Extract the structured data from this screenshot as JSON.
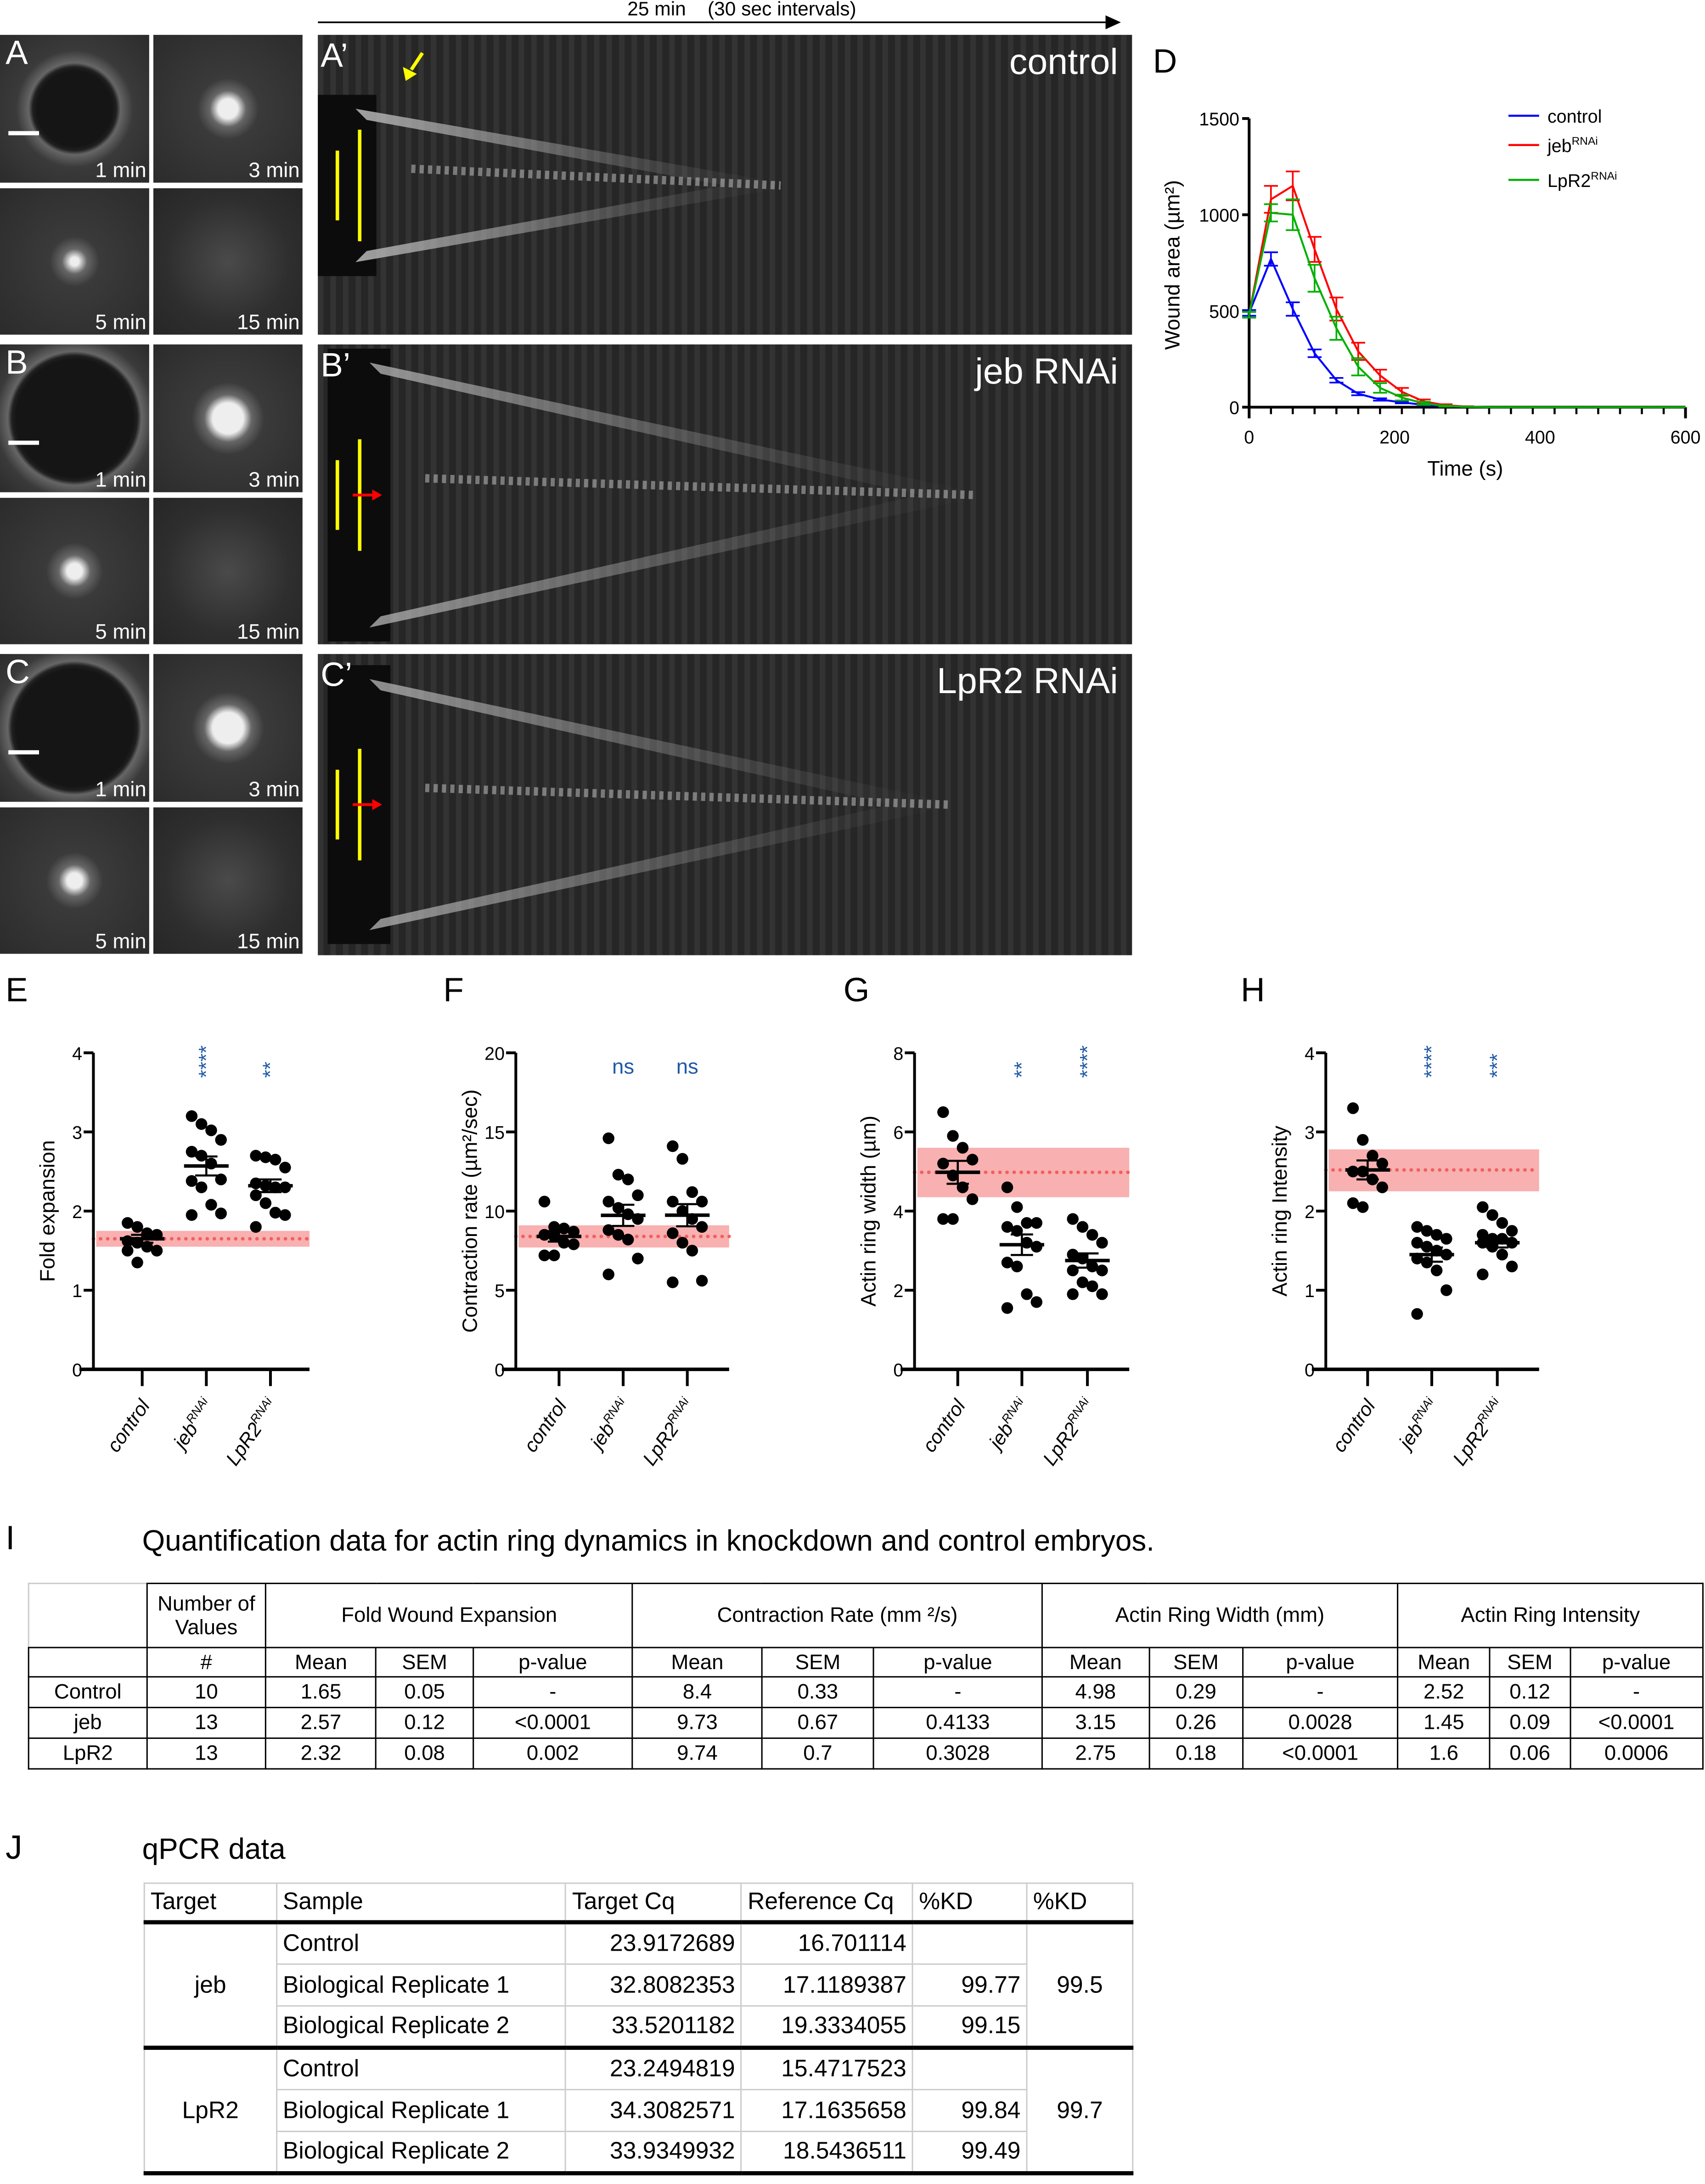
{
  "header": {
    "time_label": "25 min    (30 sec intervals)"
  },
  "microscopy": [
    {
      "letter": "A",
      "kymo_letter": "A’",
      "condition": "control",
      "times": [
        "1 min",
        "3 min",
        "5 min",
        "15 min"
      ]
    },
    {
      "letter": "B",
      "kymo_letter": "B’",
      "condition": "jeb RNAi",
      "times": [
        "1 min",
        "3 min",
        "5 min",
        "15 min"
      ]
    },
    {
      "letter": "C",
      "kymo_letter": "C’",
      "condition": "LpR2 RNAi",
      "times": [
        "1 min",
        "3 min",
        "5 min",
        "15 min"
      ]
    }
  ],
  "colors": {
    "control": "#0000ff",
    "jeb": "#ff0000",
    "lpr2": "#00b000",
    "significance": "#1f5aa6",
    "band": "#f8b0b0",
    "band_line": "#f06060",
    "arrow_yellow": "#ffff00",
    "arrow_red": "#ff0000"
  },
  "chart_data": [
    {
      "panel": "D",
      "type": "line",
      "xlabel": "Time (s)",
      "ylabel": "Wound area (µm²)",
      "xlim": [
        0,
        600
      ],
      "ylim": [
        0,
        1500
      ],
      "xticks": [
        "0",
        "200",
        "400",
        "600"
      ],
      "yticks": [
        "0",
        "500",
        "1000",
        "1500"
      ],
      "legend": "top-right",
      "x": [
        0,
        30,
        60,
        90,
        120,
        150,
        180,
        210,
        240,
        270,
        300,
        330,
        360,
        390,
        420,
        450,
        480,
        510,
        540,
        570,
        600
      ],
      "series": [
        {
          "name": "control",
          "color": "#0000ff",
          "values": [
            490,
            770,
            510,
            280,
            140,
            70,
            40,
            25,
            12,
            5,
            2,
            0,
            0,
            0,
            0,
            0,
            0,
            0,
            0,
            0,
            0
          ],
          "sem": [
            15,
            35,
            35,
            20,
            12,
            8,
            6,
            5,
            3,
            2,
            1,
            0,
            0,
            0,
            0,
            0,
            0,
            0,
            0,
            0,
            0
          ]
        },
        {
          "name": "jebRNAi",
          "color": "#ff0000",
          "values": [
            480,
            1080,
            1150,
            820,
            510,
            290,
            165,
            80,
            30,
            10,
            3,
            0,
            0,
            0,
            0,
            0,
            0,
            0,
            0,
            0,
            0
          ],
          "sem": [
            15,
            70,
            75,
            65,
            60,
            45,
            30,
            20,
            10,
            5,
            2,
            0,
            0,
            0,
            0,
            0,
            0,
            0,
            0,
            0,
            0
          ]
        },
        {
          "name": "LpR2RNAi",
          "color": "#00b000",
          "values": [
            480,
            1010,
            1000,
            670,
            410,
            210,
            100,
            50,
            20,
            6,
            2,
            0,
            0,
            0,
            0,
            0,
            0,
            0,
            0,
            0,
            0
          ],
          "sem": [
            15,
            45,
            80,
            70,
            60,
            45,
            25,
            15,
            8,
            3,
            1,
            0,
            0,
            0,
            0,
            0,
            0,
            0,
            0,
            0,
            0
          ]
        }
      ]
    },
    {
      "panel": "E",
      "type": "scatter",
      "ylabel": "Fold expansion",
      "ylim": [
        0,
        4
      ],
      "yticks": [
        "0",
        "1",
        "2",
        "3",
        "4"
      ],
      "categories": [
        "control",
        "jebRNAi",
        "LpR2RNAi"
      ],
      "significance": [
        "",
        "****",
        "**"
      ],
      "reference_band": [
        1.55,
        1.75
      ],
      "reference_line": 1.65,
      "groups": [
        {
          "values": [
            1.85,
            1.8,
            1.72,
            1.7,
            1.62,
            1.6,
            1.55,
            1.5,
            1.5,
            1.35
          ],
          "mean": 1.65,
          "sem": 0.05
        },
        {
          "values": [
            3.2,
            3.1,
            3.02,
            2.9,
            2.75,
            2.7,
            2.6,
            2.4,
            2.38,
            2.3,
            2.08,
            1.95,
            1.97
          ],
          "mean": 2.57,
          "sem": 0.12
        },
        {
          "values": [
            2.7,
            2.68,
            2.65,
            2.55,
            2.35,
            2.32,
            2.3,
            2.3,
            2.2,
            2.1,
            1.98,
            1.95,
            1.8
          ],
          "mean": 2.32,
          "sem": 0.08
        }
      ]
    },
    {
      "panel": "F",
      "type": "scatter",
      "ylabel": "Contraction rate (µm²/sec)",
      "ylim": [
        0,
        20
      ],
      "yticks": [
        "0",
        "5",
        "10",
        "15",
        "20"
      ],
      "categories": [
        "control",
        "jebRNAi",
        "LpR2RNAi"
      ],
      "significance": [
        "",
        "ns",
        "ns"
      ],
      "reference_band": [
        7.7,
        9.1
      ],
      "reference_line": 8.4,
      "groups": [
        {
          "values": [
            10.6,
            9.0,
            8.9,
            8.7,
            8.5,
            8.4,
            8.0,
            7.9,
            7.2,
            7.2
          ],
          "mean": 8.4,
          "sem": 0.33
        },
        {
          "values": [
            14.6,
            12.3,
            12.0,
            11.0,
            10.6,
            10.2,
            9.8,
            9.5,
            8.8,
            8.5,
            7.0,
            6.0,
            8.2
          ],
          "mean": 9.73,
          "sem": 0.67
        },
        {
          "values": [
            14.1,
            13.3,
            11.2,
            10.6,
            10.6,
            10.0,
            9.5,
            9.0,
            8.6,
            8.0,
            7.5,
            5.6,
            5.5
          ],
          "mean": 9.74,
          "sem": 0.7
        }
      ]
    },
    {
      "panel": "G",
      "type": "scatter",
      "ylabel": "Actin ring width (µm)",
      "ylim": [
        0,
        8
      ],
      "yticks": [
        "0",
        "2",
        "4",
        "6",
        "8"
      ],
      "categories": [
        "control",
        "jebRNAi",
        "LpR2RNAi"
      ],
      "significance": [
        "",
        "**",
        "****"
      ],
      "reference_band": [
        4.35,
        5.6
      ],
      "reference_line": 4.98,
      "groups": [
        {
          "values": [
            6.5,
            5.9,
            5.6,
            5.3,
            5.2,
            4.9,
            4.6,
            4.3,
            3.8,
            3.8
          ],
          "mean": 4.98,
          "sem": 0.29
        },
        {
          "values": [
            4.6,
            4.1,
            3.7,
            3.7,
            3.6,
            3.5,
            3.2,
            3.1,
            2.7,
            2.6,
            1.9,
            1.7,
            1.55
          ],
          "mean": 3.15,
          "sem": 0.26
        },
        {
          "values": [
            3.8,
            3.6,
            3.4,
            3.2,
            2.9,
            2.8,
            2.6,
            2.5,
            2.5,
            2.2,
            2.1,
            1.9,
            1.9
          ],
          "mean": 2.75,
          "sem": 0.18
        }
      ]
    },
    {
      "panel": "H",
      "type": "scatter",
      "ylabel": "Actin ring Intensity",
      "ylim": [
        0,
        4
      ],
      "yticks": [
        "0",
        "1",
        "2",
        "3",
        "4"
      ],
      "categories": [
        "control",
        "jebRNAi",
        "LpR2RNAi"
      ],
      "significance": [
        "",
        "****",
        "***"
      ],
      "reference_band": [
        2.25,
        2.78
      ],
      "reference_line": 2.52,
      "groups": [
        {
          "values": [
            3.3,
            2.9,
            2.7,
            2.6,
            2.5,
            2.5,
            2.4,
            2.3,
            2.1,
            2.05
          ],
          "mean": 2.52,
          "sem": 0.12
        },
        {
          "values": [
            1.8,
            1.75,
            1.7,
            1.65,
            1.6,
            1.55,
            1.5,
            1.45,
            1.4,
            1.35,
            1.25,
            1.0,
            0.7
          ],
          "mean": 1.45,
          "sem": 0.09
        },
        {
          "values": [
            2.05,
            1.95,
            1.85,
            1.75,
            1.7,
            1.65,
            1.65,
            1.6,
            1.6,
            1.55,
            1.45,
            1.3,
            1.2
          ],
          "mean": 1.6,
          "sem": 0.06
        }
      ]
    }
  ],
  "table_i": {
    "letter": "I",
    "title": "Quantification data for actin ring dynamics in knockdown and control embryos.",
    "count_header": "Number of Values",
    "groups": [
      "Fold Wound Expansion",
      "Contraction Rate (mm ²/s)",
      "Actin Ring Width (mm)",
      "Actin Ring Intensity"
    ],
    "subheaders": [
      "#",
      "Mean",
      "SEM",
      "p-value",
      "Mean",
      "SEM",
      "p-value",
      "Mean",
      "SEM",
      "p-value",
      "Mean",
      "SEM",
      "p-value"
    ],
    "rows": [
      [
        "Control",
        "10",
        "1.65",
        "0.05",
        "-",
        "8.4",
        "0.33",
        "-",
        "4.98",
        "0.29",
        "-",
        "2.52",
        "0.12",
        "-"
      ],
      [
        "jeb",
        "13",
        "2.57",
        "0.12",
        "<0.0001",
        "9.73",
        "0.67",
        "0.4133",
        "3.15",
        "0.26",
        "0.0028",
        "1.45",
        "0.09",
        "<0.0001"
      ],
      [
        "LpR2",
        "13",
        "2.32",
        "0.08",
        "0.002",
        "9.74",
        "0.7",
        "0.3028",
        "2.75",
        "0.18",
        "<0.0001",
        "1.6",
        "0.06",
        "0.0006"
      ]
    ]
  },
  "table_j": {
    "letter": "J",
    "title": "qPCR data",
    "headers": [
      "Target",
      "Sample",
      "Target Cq",
      "Reference Cq",
      "%KD",
      "%KD"
    ],
    "targets": [
      {
        "name": "jeb",
        "overall_kd": "99.5",
        "rows": [
          [
            "Control",
            "23.9172689",
            "16.701114",
            ""
          ],
          [
            "Biological Replicate 1",
            "32.8082353",
            "17.1189387",
            "99.77"
          ],
          [
            "Biological Replicate 2",
            "33.5201182",
            "19.3334055",
            "99.15"
          ]
        ]
      },
      {
        "name": "LpR2",
        "overall_kd": "99.7",
        "rows": [
          [
            "Control",
            "23.2494819",
            "15.4717523",
            ""
          ],
          [
            "Biological Replicate 1",
            "34.3082571",
            "17.1635658",
            "99.84"
          ],
          [
            "Biological Replicate 2",
            "33.9349932",
            "18.5436511",
            "99.49"
          ]
        ]
      }
    ]
  }
}
